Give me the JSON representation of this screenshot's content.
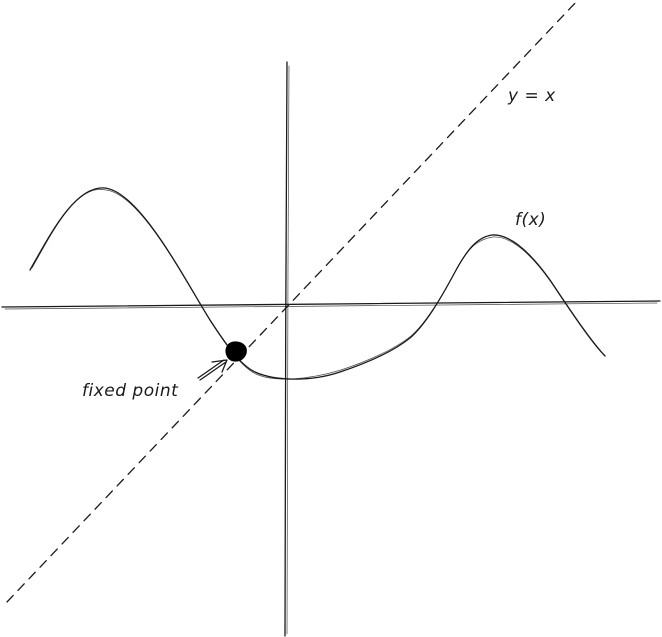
{
  "labels": {
    "identity_line": "y = x",
    "function": "f(x)",
    "fixed_point": "fixed point"
  },
  "colors": {
    "ink": "#1a1a1a",
    "background": "#ffffff"
  }
}
